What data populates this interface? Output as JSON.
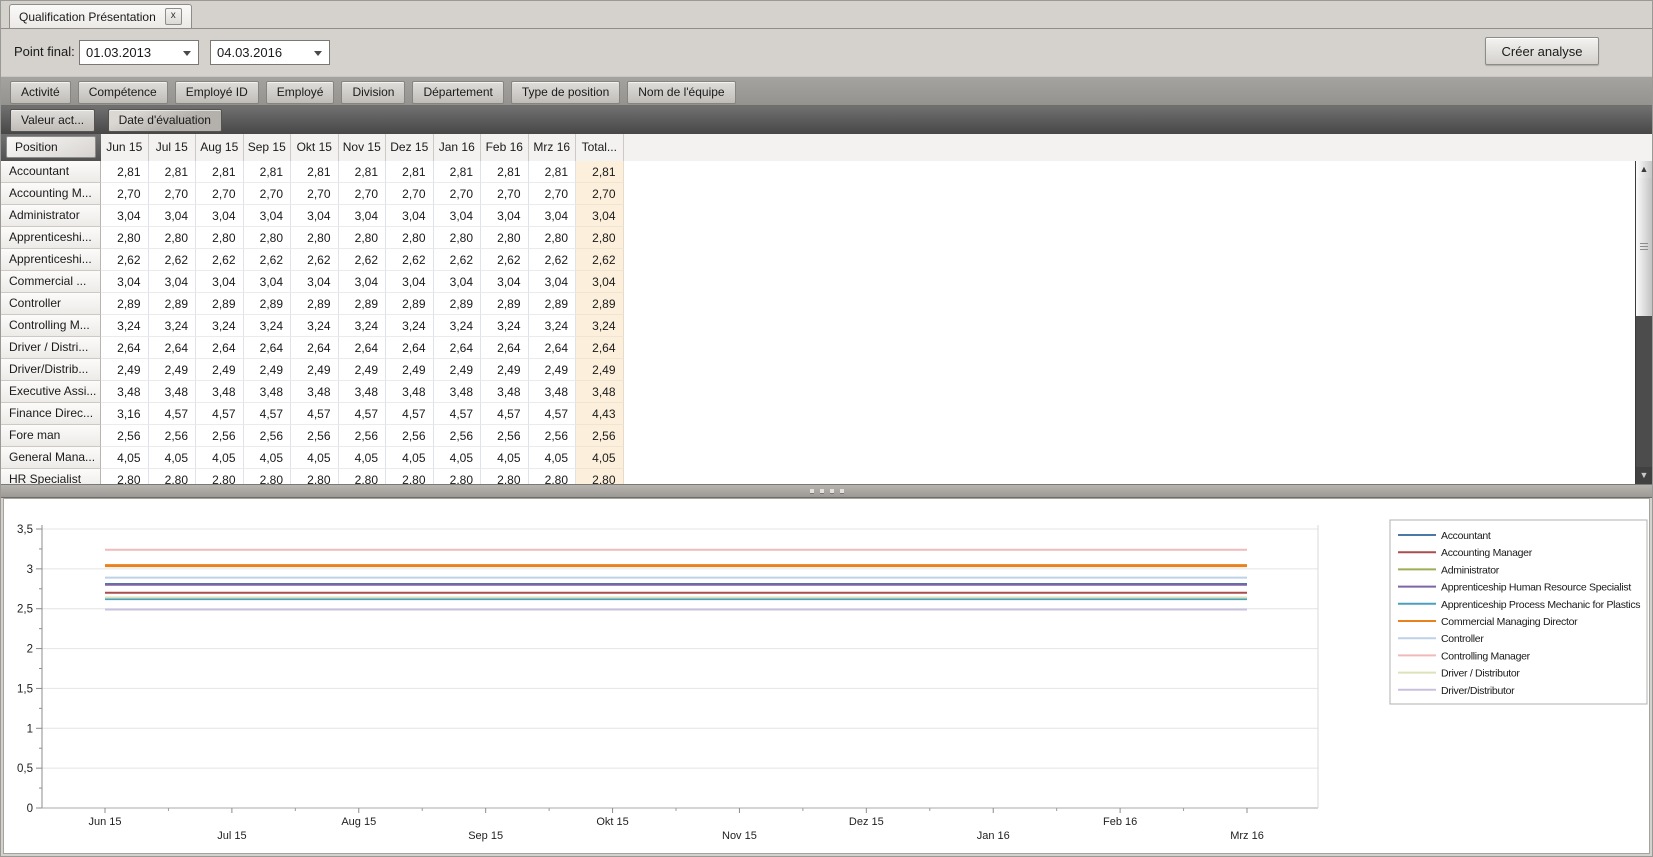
{
  "tab": {
    "title": "Qualification Présentation",
    "close_glyph": "x"
  },
  "toolbar": {
    "label": "Point final:",
    "date_from": "01.03.2013",
    "date_to": "04.03.2016",
    "create_button": "Créer analyse"
  },
  "filter_fields": [
    "Activité",
    "Compétence",
    "Employé ID",
    "Employé",
    "Division",
    "Département",
    "Type de position",
    "Nom de l'équipe"
  ],
  "data_fields": [
    "Valeur act...",
    "Date d'évaluation"
  ],
  "pivot": {
    "row_field": "Position",
    "columns": [
      "Jun 15",
      "Jul 15",
      "Aug 15",
      "Sep 15",
      "Okt 15",
      "Nov 15",
      "Dez 15",
      "Jan 16",
      "Feb 16",
      "Mrz 16",
      "Total..."
    ],
    "rows": [
      {
        "label": "Accountant",
        "values": [
          "2,81",
          "2,81",
          "2,81",
          "2,81",
          "2,81",
          "2,81",
          "2,81",
          "2,81",
          "2,81",
          "2,81"
        ],
        "total": "2,81"
      },
      {
        "label": "Accounting M...",
        "values": [
          "2,70",
          "2,70",
          "2,70",
          "2,70",
          "2,70",
          "2,70",
          "2,70",
          "2,70",
          "2,70",
          "2,70"
        ],
        "total": "2,70"
      },
      {
        "label": "Administrator",
        "values": [
          "3,04",
          "3,04",
          "3,04",
          "3,04",
          "3,04",
          "3,04",
          "3,04",
          "3,04",
          "3,04",
          "3,04"
        ],
        "total": "3,04"
      },
      {
        "label": "Apprenticeshi...",
        "values": [
          "2,80",
          "2,80",
          "2,80",
          "2,80",
          "2,80",
          "2,80",
          "2,80",
          "2,80",
          "2,80",
          "2,80"
        ],
        "total": "2,80"
      },
      {
        "label": "Apprenticeshi...",
        "values": [
          "2,62",
          "2,62",
          "2,62",
          "2,62",
          "2,62",
          "2,62",
          "2,62",
          "2,62",
          "2,62",
          "2,62"
        ],
        "total": "2,62"
      },
      {
        "label": "Commercial ...",
        "values": [
          "3,04",
          "3,04",
          "3,04",
          "3,04",
          "3,04",
          "3,04",
          "3,04",
          "3,04",
          "3,04",
          "3,04"
        ],
        "total": "3,04"
      },
      {
        "label": "Controller",
        "values": [
          "2,89",
          "2,89",
          "2,89",
          "2,89",
          "2,89",
          "2,89",
          "2,89",
          "2,89",
          "2,89",
          "2,89"
        ],
        "total": "2,89"
      },
      {
        "label": "Controlling M...",
        "values": [
          "3,24",
          "3,24",
          "3,24",
          "3,24",
          "3,24",
          "3,24",
          "3,24",
          "3,24",
          "3,24",
          "3,24"
        ],
        "total": "3,24"
      },
      {
        "label": "Driver / Distri...",
        "values": [
          "2,64",
          "2,64",
          "2,64",
          "2,64",
          "2,64",
          "2,64",
          "2,64",
          "2,64",
          "2,64",
          "2,64"
        ],
        "total": "2,64"
      },
      {
        "label": "Driver/Distrib...",
        "values": [
          "2,49",
          "2,49",
          "2,49",
          "2,49",
          "2,49",
          "2,49",
          "2,49",
          "2,49",
          "2,49",
          "2,49"
        ],
        "total": "2,49"
      },
      {
        "label": "Executive Assi...",
        "values": [
          "3,48",
          "3,48",
          "3,48",
          "3,48",
          "3,48",
          "3,48",
          "3,48",
          "3,48",
          "3,48",
          "3,48"
        ],
        "total": "3,48"
      },
      {
        "label": "Finance Direc...",
        "values": [
          "3,16",
          "4,57",
          "4,57",
          "4,57",
          "4,57",
          "4,57",
          "4,57",
          "4,57",
          "4,57",
          "4,57"
        ],
        "total": "4,43"
      },
      {
        "label": "Fore man",
        "values": [
          "2,56",
          "2,56",
          "2,56",
          "2,56",
          "2,56",
          "2,56",
          "2,56",
          "2,56",
          "2,56",
          "2,56"
        ],
        "total": "2,56"
      },
      {
        "label": "General Mana...",
        "values": [
          "4,05",
          "4,05",
          "4,05",
          "4,05",
          "4,05",
          "4,05",
          "4,05",
          "4,05",
          "4,05",
          "4,05"
        ],
        "total": "4,05"
      },
      {
        "label": "HR Specialist",
        "values": [
          "2,80",
          "2,80",
          "2,80",
          "2,80",
          "2,80",
          "2,80",
          "2,80",
          "2,80",
          "2,80",
          "2,80"
        ],
        "total": "2,80"
      }
    ]
  },
  "scrollbar": {
    "up_glyph": "▲",
    "down_glyph": "▼"
  },
  "chart_data": {
    "type": "line",
    "x": [
      "Jun 15",
      "Jul 15",
      "Aug 15",
      "Sep 15",
      "Okt 15",
      "Nov 15",
      "Dez 15",
      "Jan 16",
      "Feb 16",
      "Mrz 16"
    ],
    "series": [
      {
        "name": "Accountant",
        "color": "#4a79a8",
        "values": [
          2.81,
          2.81,
          2.81,
          2.81,
          2.81,
          2.81,
          2.81,
          2.81,
          2.81,
          2.81
        ]
      },
      {
        "name": "Accounting Manager",
        "color": "#aa4d4e",
        "values": [
          2.7,
          2.7,
          2.7,
          2.7,
          2.7,
          2.7,
          2.7,
          2.7,
          2.7,
          2.7
        ]
      },
      {
        "name": "Administrator",
        "color": "#9cae56",
        "values": [
          3.04,
          3.04,
          3.04,
          3.04,
          3.04,
          3.04,
          3.04,
          3.04,
          3.04,
          3.04
        ]
      },
      {
        "name": "Apprenticeship Human Resource Specialist",
        "color": "#7c65a5",
        "values": [
          2.8,
          2.8,
          2.8,
          2.8,
          2.8,
          2.8,
          2.8,
          2.8,
          2.8,
          2.8
        ]
      },
      {
        "name": "Apprenticeship Process Mechanic for Plastics",
        "color": "#4ba0bc",
        "values": [
          2.62,
          2.62,
          2.62,
          2.62,
          2.62,
          2.62,
          2.62,
          2.62,
          2.62,
          2.62
        ]
      },
      {
        "name": "Commercial Managing Director",
        "color": "#e8811e",
        "values": [
          3.04,
          3.04,
          3.04,
          3.04,
          3.04,
          3.04,
          3.04,
          3.04,
          3.04,
          3.04
        ]
      },
      {
        "name": "Controller",
        "color": "#bdd1e8",
        "values": [
          2.89,
          2.89,
          2.89,
          2.89,
          2.89,
          2.89,
          2.89,
          2.89,
          2.89,
          2.89
        ]
      },
      {
        "name": "Controlling Manager",
        "color": "#efbab9",
        "values": [
          3.24,
          3.24,
          3.24,
          3.24,
          3.24,
          3.24,
          3.24,
          3.24,
          3.24,
          3.24
        ]
      },
      {
        "name": "Driver / Distributor",
        "color": "#dce2b9",
        "values": [
          2.64,
          2.64,
          2.64,
          2.64,
          2.64,
          2.64,
          2.64,
          2.64,
          2.64,
          2.64
        ]
      },
      {
        "name": "Driver/Distributor",
        "color": "#c9c0dd",
        "values": [
          2.49,
          2.49,
          2.49,
          2.49,
          2.49,
          2.49,
          2.49,
          2.49,
          2.49,
          2.49
        ]
      }
    ],
    "ylim": [
      0,
      3.5
    ],
    "yticks": [
      0,
      0.5,
      1,
      1.5,
      2,
      2.5,
      3,
      3.5
    ],
    "ytick_labels": [
      "0",
      "0,5",
      "1",
      "1,5",
      "2",
      "2,5",
      "3",
      "3,5"
    ],
    "grid": true,
    "legend_position": "right"
  },
  "colors": {
    "total_column_bg": "#fcf0dd",
    "dark_bar": "#4a4a4a",
    "filter_bar": "#9b9894"
  }
}
